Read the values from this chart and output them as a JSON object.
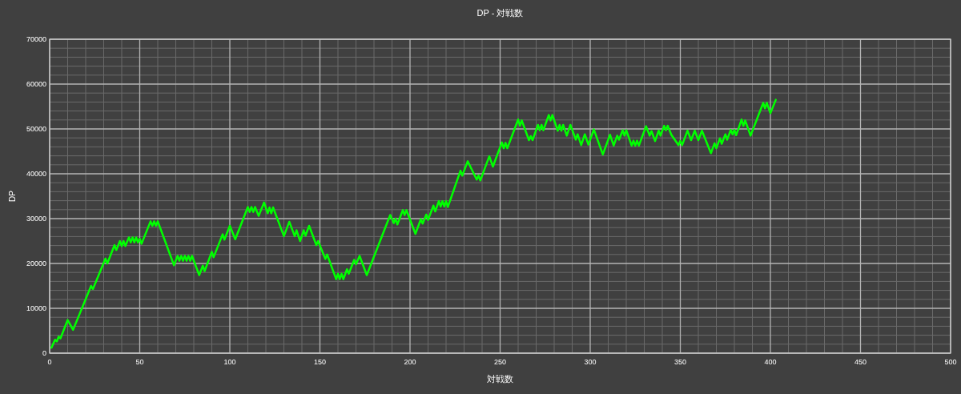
{
  "chart_data": {
    "type": "line",
    "title": "DP - 対戦数",
    "xlabel": "対戦数",
    "ylabel": "DP",
    "xlim": [
      0,
      500
    ],
    "xticks": [
      0,
      50,
      100,
      150,
      200,
      250,
      300,
      350,
      400,
      450,
      500
    ],
    "ylim": [
      0,
      70000
    ],
    "yticks": [
      0,
      10000,
      20000,
      30000,
      40000,
      50000,
      60000,
      70000
    ],
    "grid": true,
    "series": [
      {
        "color": "#00ff00",
        "x": [
          1,
          3,
          4,
          5,
          6,
          10,
          13,
          23,
          24,
          31,
          32,
          36,
          37,
          39,
          40,
          41,
          42,
          44,
          45,
          46,
          47,
          48,
          49,
          50,
          51,
          56,
          57,
          58,
          59,
          60,
          69,
          71,
          72,
          73,
          74,
          75,
          76,
          77,
          78,
          79,
          83,
          85,
          86,
          90,
          91,
          96,
          97,
          100,
          103,
          110,
          111,
          112,
          113,
          114,
          116,
          119,
          121,
          122,
          123,
          124,
          130,
          133,
          136,
          137,
          139,
          141,
          142,
          144,
          148,
          149,
          153,
          154,
          159,
          160,
          161,
          162,
          163,
          165,
          166,
          169,
          170,
          172,
          176,
          189,
          191,
          192,
          193,
          196,
          197,
          198,
          203,
          206,
          207,
          209,
          210,
          213,
          214,
          216,
          217,
          218,
          219,
          220,
          221,
          228,
          229,
          232,
          237,
          238,
          239,
          244,
          246,
          251,
          252,
          253,
          254,
          260,
          261,
          262,
          266,
          267,
          268,
          271,
          272,
          273,
          274,
          277,
          278,
          279,
          282,
          283,
          284,
          285,
          287,
          289,
          292,
          293,
          295,
          297,
          299,
          302,
          307,
          311,
          313,
          315,
          316,
          318,
          319,
          320,
          323,
          324,
          325,
          326,
          327,
          331,
          333,
          334,
          336,
          338,
          339,
          341,
          342,
          343,
          345,
          349,
          350,
          351,
          354,
          356,
          358,
          360,
          362,
          367,
          369,
          370,
          372,
          373,
          375,
          376,
          378,
          379,
          380,
          381,
          384,
          385,
          386,
          389,
          396,
          397,
          398,
          400,
          403
        ],
        "values": [
          1200,
          3000,
          2600,
          3700,
          3300,
          7400,
          5200,
          15000,
          14300,
          21100,
          20000,
          24100,
          23000,
          25000,
          23900,
          25000,
          23900,
          25800,
          24700,
          25800,
          24700,
          25800,
          24700,
          25500,
          24400,
          29400,
          28400,
          29400,
          28400,
          29400,
          19600,
          21700,
          20600,
          21700,
          20600,
          21700,
          20600,
          21700,
          20600,
          21700,
          17400,
          19500,
          18300,
          22600,
          21400,
          26500,
          25300,
          28400,
          25400,
          32600,
          31500,
          32600,
          31500,
          32600,
          30600,
          33600,
          31200,
          32500,
          31200,
          32500,
          26100,
          29300,
          26100,
          27400,
          25000,
          27400,
          26200,
          28400,
          24100,
          25000,
          21000,
          22000,
          16500,
          17700,
          16500,
          17700,
          16500,
          18700,
          17700,
          20800,
          19800,
          21700,
          17400,
          30800,
          29000,
          30000,
          28700,
          31900,
          30800,
          31900,
          26600,
          29900,
          28900,
          30900,
          29700,
          32900,
          31600,
          33900,
          32700,
          33900,
          32700,
          33900,
          32600,
          40700,
          39600,
          42800,
          38700,
          39600,
          38500,
          43900,
          41600,
          47000,
          45700,
          46900,
          45700,
          52100,
          50700,
          51900,
          47500,
          48400,
          47500,
          50900,
          49700,
          50900,
          49700,
          53100,
          51900,
          53100,
          49600,
          50900,
          49600,
          50900,
          48500,
          50900,
          47600,
          48800,
          46400,
          48800,
          46500,
          49900,
          44300,
          48700,
          46300,
          48500,
          47600,
          49700,
          48500,
          49700,
          46300,
          47400,
          46300,
          47400,
          46300,
          50600,
          48500,
          49500,
          47300,
          49600,
          48500,
          50700,
          49700,
          50700,
          48700,
          46400,
          47300,
          46400,
          49600,
          47500,
          49600,
          47500,
          49600,
          44600,
          46800,
          45700,
          47900,
          46700,
          48800,
          47600,
          49800,
          48800,
          49800,
          48600,
          52100,
          50700,
          51900,
          48500,
          55800,
          54600,
          55800,
          53500,
          56500
        ]
      }
    ]
  }
}
